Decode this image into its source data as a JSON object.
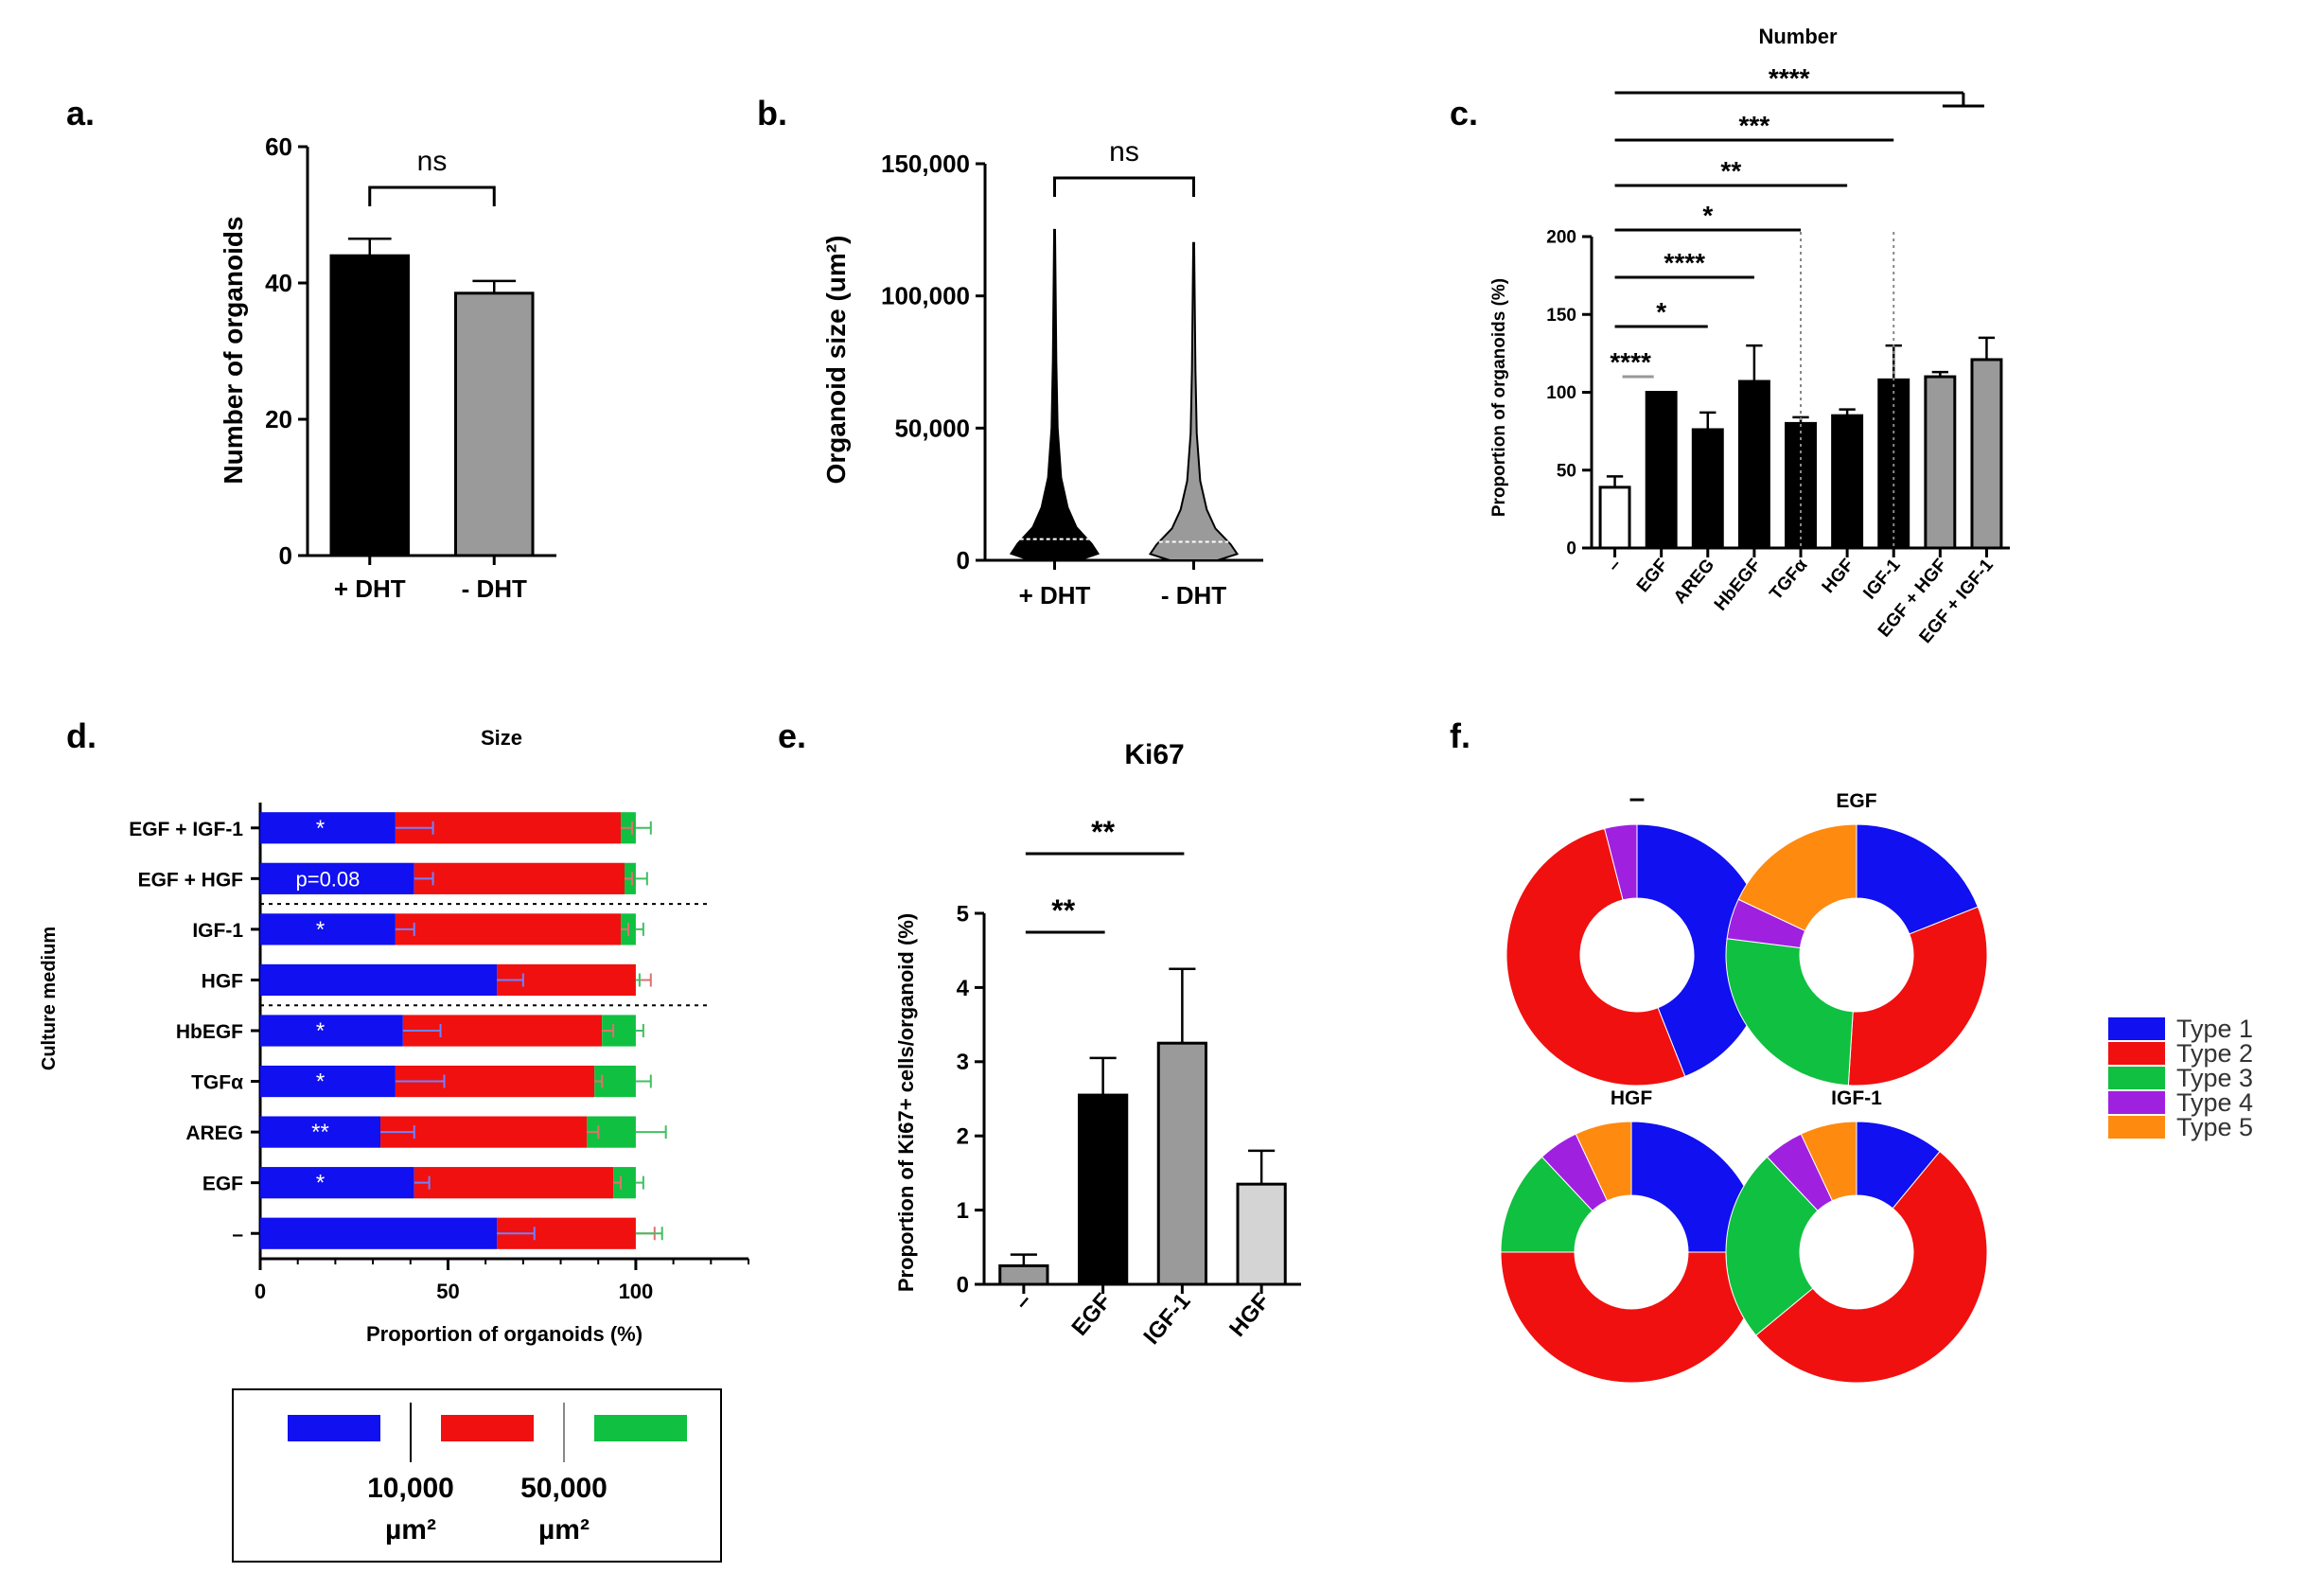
{
  "colors": {
    "black": "#000000",
    "grey": "#9a9a9a",
    "lightgrey": "#d4d4d4",
    "white": "#ffffff",
    "blue": "#1010f0",
    "red": "#f01010",
    "green": "#10c040",
    "purple": "#a020e0",
    "orange": "#ff8a10"
  },
  "chart_data": [
    {
      "panel": "a.",
      "type": "bar",
      "title": "",
      "ylabel": "Number of organoids",
      "xlabel": "",
      "ylim": [
        0,
        60
      ],
      "yticks": [
        "0",
        "20",
        "40",
        "60"
      ],
      "categories": [
        "+ DHT",
        "- DHT"
      ],
      "values": [
        44,
        38.5
      ],
      "errors": [
        2.5,
        1.8
      ],
      "fills": [
        "black",
        "grey"
      ],
      "brackets": [
        {
          "from": 0,
          "to": 1,
          "label": "ns"
        }
      ]
    },
    {
      "panel": "b.",
      "type": "violin",
      "title": "",
      "ylabel": "Organoid size (um²)",
      "xlabel": "",
      "ylim": [
        0,
        150000
      ],
      "yticks": [
        "0",
        "50,000",
        "100,000",
        "150,000"
      ],
      "categories": [
        "+ DHT",
        "- DHT"
      ],
      "max_values": [
        125000,
        120000
      ],
      "medians": [
        8000,
        7000
      ],
      "fills": [
        "black",
        "grey"
      ],
      "brackets": [
        {
          "from": 0,
          "to": 1,
          "label": "ns"
        }
      ]
    },
    {
      "panel": "c.",
      "type": "bar",
      "title": "Number",
      "ylabel": "Proportion of organoids (%)",
      "xlabel": "",
      "ylim": [
        0,
        200
      ],
      "yticks": [
        "0",
        "50",
        "100",
        "150",
        "200"
      ],
      "categories": [
        "–",
        "EGF",
        "AREG",
        "HbEGF",
        "TGFα",
        "HGF",
        "IGF-1",
        "EGF + HGF",
        "EGF + IGF-1"
      ],
      "values": [
        39,
        100,
        76,
        107,
        80,
        85,
        108,
        110,
        121
      ],
      "errors": [
        7,
        0,
        11,
        23,
        4,
        4,
        22,
        3,
        14
      ],
      "fills": [
        "white",
        "black",
        "black",
        "black",
        "black",
        "black",
        "black",
        "grey",
        "grey"
      ],
      "brackets": [
        {
          "from": 0,
          "to": 1,
          "label": "****",
          "level": 0
        },
        {
          "from": 0,
          "to": 2,
          "label": "*",
          "level": 1
        },
        {
          "from": 0,
          "to": 3,
          "label": "****",
          "level": 2
        },
        {
          "from": 0,
          "to": 4,
          "label": "*",
          "level": 3
        },
        {
          "from": 0,
          "to": 5,
          "label": "**",
          "level": 4
        },
        {
          "from": 0,
          "to": 6,
          "label": "***",
          "level": 5
        },
        {
          "from": 0,
          "to": 7.5,
          "label": "****",
          "level": 6
        }
      ]
    },
    {
      "panel": "d.",
      "type": "stacked_barh",
      "title": "Size",
      "xlabel": "Proportion of organoids (%)",
      "ylabel": "Culture medium",
      "xlim": [
        0,
        130
      ],
      "xticks": [
        "0",
        "50",
        "100"
      ],
      "categories": [
        "EGF + IGF-1",
        "EGF + HGF",
        "IGF-1",
        "HGF",
        "HbEGF",
        "TGFα",
        "AREG",
        "EGF",
        "–"
      ],
      "series": [
        {
          "name": "< 10,000 µm²",
          "color": "blue",
          "values": [
            36,
            41,
            36,
            63,
            38,
            36,
            32,
            41,
            63
          ],
          "errors": [
            10,
            5,
            5,
            7,
            10,
            13,
            9,
            4,
            10
          ]
        },
        {
          "name": "10,000–50,000 µm²",
          "color": "red",
          "values": [
            60,
            56,
            60,
            37,
            53,
            53,
            55,
            53,
            37
          ],
          "errors": [
            3,
            2,
            2,
            4,
            3,
            2,
            3,
            2,
            5
          ]
        },
        {
          "name": "> 50,000 µm²",
          "color": "green",
          "values": [
            4,
            3,
            4,
            0,
            9,
            11,
            13,
            6,
            0
          ],
          "errors": [
            4,
            3,
            2,
            1,
            2,
            4,
            8,
            2,
            7
          ]
        }
      ],
      "annotations": [
        "*",
        "p=0.08",
        "*",
        "",
        "*",
        "*",
        "**",
        "*",
        ""
      ],
      "legend_labels": [
        "10,000",
        "µm²",
        "50,000",
        "µm²"
      ]
    },
    {
      "panel": "e.",
      "type": "bar",
      "title": "Ki67",
      "ylabel": "Proportion of Ki67+ cells/organoid (%)",
      "xlabel": "",
      "ylim": [
        0,
        5
      ],
      "yticks": [
        "0",
        "1",
        "2",
        "3",
        "4",
        "5"
      ],
      "categories": [
        "–",
        "EGF",
        "IGF-1",
        "HGF"
      ],
      "values": [
        0.25,
        2.55,
        3.25,
        1.35
      ],
      "errors": [
        0.15,
        0.5,
        1.0,
        0.45
      ],
      "fills": [
        "grey",
        "black",
        "grey",
        "lightgrey"
      ],
      "brackets": [
        {
          "from": 0,
          "to": 1,
          "label": "**"
        },
        {
          "from": 0,
          "to": 2,
          "label": "**"
        }
      ]
    },
    {
      "panel": "f.",
      "type": "pie",
      "title": "",
      "series_names": [
        "Type 1",
        "Type 2",
        "Type 3",
        "Type 4",
        "Type 5"
      ],
      "series_colors": [
        "blue",
        "red",
        "green",
        "purple",
        "orange"
      ],
      "pies": [
        {
          "label": "–",
          "values": [
            44,
            52,
            0,
            4,
            0
          ]
        },
        {
          "label": "EGF",
          "values": [
            19,
            32,
            26,
            5,
            18
          ]
        },
        {
          "label": "HGF",
          "values": [
            25,
            50,
            13,
            5,
            7
          ]
        },
        {
          "label": "IGF-1",
          "values": [
            11,
            53,
            24,
            5,
            7
          ]
        }
      ]
    }
  ]
}
